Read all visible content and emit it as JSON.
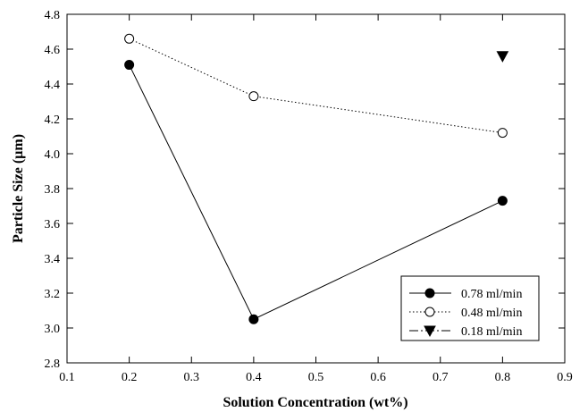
{
  "chart_data": {
    "type": "line",
    "title": "",
    "xlabel": "Solution Concentration (wt%)",
    "ylabel": "Particle Size (µm)",
    "xlim": [
      0.1,
      0.9
    ],
    "ylim": [
      2.8,
      4.8
    ],
    "x_ticks": [
      "0.1",
      "0.2",
      "0.3",
      "0.4",
      "0.5",
      "0.6",
      "0.7",
      "0.8",
      "0.9"
    ],
    "y_ticks": [
      "2.8",
      "3.0",
      "3.2",
      "3.4",
      "3.6",
      "3.8",
      "4.0",
      "4.2",
      "4.4",
      "4.6",
      "4.8"
    ],
    "grid": false,
    "legend_position": "bottom-right",
    "series": [
      {
        "name": "0.78 ml/min",
        "marker": "filled-circle",
        "line": "solid",
        "color": "#000000",
        "points": [
          [
            0.2,
            4.51
          ],
          [
            0.4,
            3.05
          ],
          [
            0.8,
            3.73
          ]
        ]
      },
      {
        "name": "0.48 ml/min",
        "marker": "open-circle",
        "line": "dotted",
        "color": "#000000",
        "points": [
          [
            0.2,
            4.66
          ],
          [
            0.4,
            4.33
          ],
          [
            0.8,
            4.12
          ]
        ]
      },
      {
        "name": "0.18 ml/min",
        "marker": "filled-triangle-down",
        "line": "dash-dot",
        "color": "#000000",
        "points": [
          [
            0.8,
            4.56
          ]
        ]
      }
    ]
  }
}
